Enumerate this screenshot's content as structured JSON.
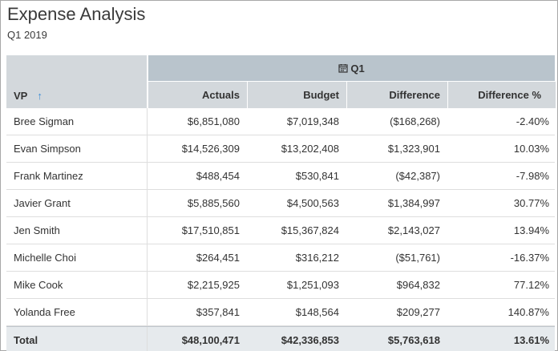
{
  "report": {
    "title": "Expense Analysis",
    "subtitle": "Q1 2019"
  },
  "table": {
    "vp_header": "VP",
    "sort_indicator": "↑",
    "group_header": "Q1",
    "group_icon": "calendar-icon",
    "columns": [
      "Actuals",
      "Budget",
      "Difference",
      "Difference %"
    ],
    "rows": [
      {
        "vp": "Bree Sigman",
        "actuals": "$6,851,080",
        "budget": "$7,019,348",
        "difference": "($168,268)",
        "difference_pct": "-2.40%"
      },
      {
        "vp": "Evan Simpson",
        "actuals": "$14,526,309",
        "budget": "$13,202,408",
        "difference": "$1,323,901",
        "difference_pct": "10.03%"
      },
      {
        "vp": "Frank Martinez",
        "actuals": "$488,454",
        "budget": "$530,841",
        "difference": "($42,387)",
        "difference_pct": "-7.98%"
      },
      {
        "vp": "Javier Grant",
        "actuals": "$5,885,560",
        "budget": "$4,500,563",
        "difference": "$1,384,997",
        "difference_pct": "30.77%"
      },
      {
        "vp": "Jen Smith",
        "actuals": "$17,510,851",
        "budget": "$15,367,824",
        "difference": "$2,143,027",
        "difference_pct": "13.94%"
      },
      {
        "vp": "Michelle Choi",
        "actuals": "$264,451",
        "budget": "$316,212",
        "difference": "($51,761)",
        "difference_pct": "-16.37%"
      },
      {
        "vp": "Mike Cook",
        "actuals": "$2,215,925",
        "budget": "$1,251,093",
        "difference": "$964,832",
        "difference_pct": "77.12%"
      },
      {
        "vp": "Yolanda Free",
        "actuals": "$357,841",
        "budget": "$148,564",
        "difference": "$209,277",
        "difference_pct": "140.87%"
      }
    ],
    "total": {
      "vp": "Total",
      "actuals": "$48,100,471",
      "budget": "$42,336,853",
      "difference": "$5,763,618",
      "difference_pct": "13.61%"
    }
  },
  "colors": {
    "header_bg": "#d3d8dc",
    "group_header_bg": "#b9c4cc",
    "total_bg": "#e6eaed",
    "sort_accent": "#3e8ed6"
  }
}
